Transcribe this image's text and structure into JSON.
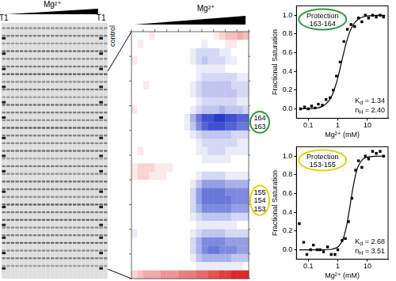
{
  "gel": {
    "title": "Mg²⁺",
    "lane_labels": [
      "T1",
      null,
      null,
      null,
      null,
      null,
      null,
      null,
      null,
      null,
      null,
      null,
      null,
      null,
      null,
      null,
      null,
      null,
      null,
      null,
      null,
      null,
      "T1",
      "control"
    ],
    "ladder_lanes": [
      0,
      22
    ],
    "band_positions": [
      0.02,
      0.05,
      0.08,
      0.11,
      0.14,
      0.17,
      0.2,
      0.23,
      0.26,
      0.29,
      0.32,
      0.35,
      0.38,
      0.41,
      0.44,
      0.47,
      0.5,
      0.53,
      0.56,
      0.59,
      0.62,
      0.65,
      0.68,
      0.71,
      0.74,
      0.77,
      0.8,
      0.83,
      0.86,
      0.89,
      0.92,
      0.95
    ],
    "band_intensities": [
      0.5,
      0.6,
      0.4,
      0.7,
      0.5,
      0.6,
      0.8,
      0.5,
      0.6,
      0.4,
      0.7,
      0.6,
      0.5,
      0.8,
      0.6,
      0.5,
      0.7,
      0.4,
      0.6,
      0.5,
      0.7,
      0.6,
      0.5,
      0.8,
      0.6,
      0.7,
      0.5,
      0.6,
      0.7,
      0.5,
      0.6,
      0.4
    ],
    "ladder_positions": [
      0.06,
      0.12,
      0.18,
      0.25,
      0.31,
      0.37,
      0.45,
      0.52,
      0.58,
      0.66,
      0.72,
      0.79,
      0.84,
      0.9,
      0.96
    ]
  },
  "chart_data": [
    {
      "type": "heatmap",
      "title": "Mg²⁺",
      "color_range": [
        -1,
        1
      ],
      "row_labels": [
        null,
        null,
        null,
        null,
        null,
        null,
        null,
        null,
        null,
        null,
        "164",
        "163",
        null,
        null,
        null,
        null,
        null,
        null,
        null,
        "155",
        "154",
        "153",
        null,
        null,
        null,
        null,
        null,
        null,
        null,
        null
      ],
      "highlights": [
        {
          "labels": [
            "164",
            "163"
          ],
          "color": "#2a9d3a"
        },
        {
          "labels": [
            "155",
            "154",
            "153"
          ],
          "color": "#e8d200"
        }
      ],
      "cells": [
        [
          0,
          0,
          0,
          0.1,
          0,
          0,
          0,
          0,
          0,
          0,
          0,
          0,
          0,
          0,
          0.1,
          0.2,
          0.3,
          0.3,
          0.4,
          0.3
        ],
        [
          0,
          0.1,
          0,
          0,
          0,
          0,
          0,
          0,
          0,
          0,
          0,
          0,
          -0.1,
          0,
          0,
          0,
          0.1,
          0.1,
          0,
          0
        ],
        [
          0,
          0,
          0,
          0,
          0,
          0,
          0,
          0,
          0,
          0,
          -0.1,
          -0.2,
          -0.2,
          -0.2,
          -0.2,
          -0.1,
          -0.1,
          0,
          0,
          0
        ],
        [
          0.1,
          0,
          0,
          0,
          0,
          0,
          0,
          0,
          0,
          0,
          -0.1,
          -0.2,
          -0.3,
          -0.2,
          -0.2,
          -0.2,
          -0.1,
          -0.1,
          0,
          0
        ],
        [
          0,
          0,
          0,
          0,
          0,
          0,
          0,
          0,
          0,
          0,
          0,
          -0.1,
          -0.1,
          -0.1,
          -0.1,
          -0.1,
          0,
          0,
          0,
          0
        ],
        [
          0,
          0,
          0,
          0,
          0,
          0,
          0,
          0,
          0,
          0,
          0,
          -0.1,
          -0.2,
          -0.2,
          -0.2,
          -0.2,
          -0.2,
          -0.2,
          -0.1,
          -0.1
        ],
        [
          0,
          0,
          0.1,
          0,
          0,
          0,
          0,
          0,
          0,
          0,
          -0.1,
          -0.2,
          -0.3,
          -0.3,
          -0.3,
          -0.3,
          -0.3,
          -0.2,
          -0.2,
          -0.2
        ],
        [
          0,
          0,
          0,
          0,
          0,
          0,
          0,
          0,
          0,
          0,
          -0.1,
          -0.2,
          -0.3,
          -0.3,
          -0.3,
          -0.3,
          -0.3,
          -0.3,
          -0.2,
          -0.2
        ],
        [
          0,
          0,
          0,
          0,
          0,
          0,
          0,
          0,
          0,
          0,
          0,
          -0.1,
          -0.2,
          -0.2,
          -0.2,
          -0.2,
          -0.2,
          -0.2,
          -0.1,
          -0.1
        ],
        [
          0.1,
          0,
          0,
          0,
          0,
          0,
          0,
          0,
          0,
          0,
          -0.1,
          -0.2,
          -0.3,
          -0.3,
          -0.3,
          -0.4,
          -0.3,
          -0.3,
          -0.3,
          -0.2
        ],
        [
          0,
          0,
          0,
          0,
          0,
          0,
          0,
          0,
          0,
          -0.1,
          -0.4,
          -0.7,
          -0.9,
          -0.9,
          -1,
          -1,
          -0.9,
          -0.9,
          -0.8,
          -0.8
        ],
        [
          0,
          0,
          0,
          0,
          0,
          0,
          0,
          0,
          0,
          -0.1,
          -0.3,
          -0.6,
          -0.8,
          -0.9,
          -0.9,
          -0.9,
          -0.8,
          -0.8,
          -0.7,
          -0.7
        ],
        [
          0,
          0,
          0,
          0,
          0,
          0,
          0,
          0,
          0,
          0,
          -0.1,
          -0.2,
          -0.3,
          -0.3,
          -0.3,
          -0.3,
          -0.3,
          -0.2,
          -0.2,
          -0.2
        ],
        [
          0,
          0,
          0,
          0,
          0,
          0,
          0,
          0,
          0,
          0,
          0,
          -0.1,
          -0.2,
          -0.2,
          -0.2,
          -0.2,
          -0.2,
          -0.2,
          -0.1,
          -0.1
        ],
        [
          0,
          0.1,
          0,
          0,
          0,
          0,
          0,
          0,
          0,
          0,
          0,
          -0.1,
          -0.1,
          -0.2,
          -0.2,
          -0.2,
          -0.1,
          -0.1,
          -0.1,
          -0.1
        ],
        [
          0,
          0,
          0,
          0,
          0,
          0,
          0,
          0,
          0,
          0,
          0,
          0,
          -0.1,
          -0.1,
          -0.1,
          -0.1,
          -0.1,
          0,
          0,
          0
        ],
        [
          0.1,
          0.2,
          0.2,
          0.2,
          0.1,
          0.1,
          0.1,
          0,
          0,
          0,
          0,
          0,
          0,
          0,
          0,
          0,
          0,
          0,
          0,
          0
        ],
        [
          0.1,
          0.2,
          0.2,
          0.1,
          0.1,
          0.1,
          0,
          0,
          0,
          0,
          0,
          -0.1,
          -0.2,
          -0.2,
          -0.2,
          -0.2,
          -0.1,
          -0.1,
          -0.1,
          -0.1
        ],
        [
          0,
          0,
          0,
          0,
          0,
          0,
          0,
          0,
          0,
          0,
          -0.1,
          -0.3,
          -0.5,
          -0.5,
          -0.5,
          -0.5,
          -0.4,
          -0.4,
          -0.4,
          -0.4
        ],
        [
          0,
          0,
          0,
          0,
          0,
          0,
          0,
          0,
          0,
          0,
          -0.2,
          -0.5,
          -0.7,
          -0.7,
          -0.7,
          -0.7,
          -0.6,
          -0.6,
          -0.6,
          -0.6
        ],
        [
          0,
          0,
          0,
          0,
          0,
          0,
          0,
          0,
          0,
          0,
          -0.2,
          -0.5,
          -0.7,
          -0.7,
          -0.7,
          -0.7,
          -0.7,
          -0.6,
          -0.6,
          -0.6
        ],
        [
          0,
          0,
          0,
          0,
          0,
          0,
          0,
          0,
          0,
          0,
          -0.2,
          -0.4,
          -0.6,
          -0.6,
          -0.6,
          -0.6,
          -0.6,
          -0.5,
          -0.5,
          -0.5
        ],
        [
          0,
          0,
          0,
          0,
          0,
          0,
          0,
          0,
          0,
          0,
          -0.1,
          -0.2,
          -0.3,
          -0.3,
          -0.3,
          -0.3,
          -0.3,
          -0.2,
          -0.2,
          -0.2
        ],
        [
          0,
          0,
          0,
          0,
          0,
          0,
          0,
          0,
          0,
          0,
          0,
          -0.1,
          -0.1,
          -0.1,
          -0.1,
          -0.1,
          -0.1,
          -0.1,
          0,
          0
        ],
        [
          -0.1,
          0,
          0,
          0,
          0,
          0,
          0,
          0,
          0,
          0,
          -0.1,
          -0.2,
          -0.3,
          -0.3,
          -0.3,
          -0.3,
          -0.2,
          -0.2,
          -0.2,
          -0.2
        ],
        [
          0,
          0,
          0,
          0,
          0,
          0,
          0,
          0,
          0,
          0,
          -0.2,
          -0.4,
          -0.6,
          -0.6,
          -0.6,
          -0.6,
          -0.5,
          -0.5,
          -0.5,
          -0.5
        ],
        [
          0,
          0,
          0,
          0,
          0,
          0,
          0,
          0,
          0,
          0,
          -0.2,
          -0.4,
          -0.6,
          -0.7,
          -0.7,
          -0.6,
          -0.6,
          -0.6,
          -0.5,
          -0.5
        ],
        [
          0,
          0,
          0,
          0,
          0,
          0,
          0,
          0,
          0,
          0,
          -0.1,
          -0.3,
          -0.4,
          -0.4,
          -0.4,
          -0.4,
          -0.4,
          -0.3,
          -0.3,
          -0.3
        ],
        [
          0,
          0,
          0,
          0,
          0,
          0,
          0,
          0,
          0,
          0,
          0,
          -0.1,
          -0.1,
          -0.1,
          -0.1,
          -0.1,
          -0.1,
          -0.1,
          -0.1,
          0
        ],
        [
          0.2,
          0.3,
          0.4,
          0.4,
          0.4,
          0.5,
          0.5,
          0.5,
          0.6,
          0.6,
          0.6,
          0.7,
          0.7,
          0.8,
          0.8,
          0.9,
          0.9,
          1,
          1,
          1
        ]
      ]
    },
    {
      "type": "scatter",
      "x_label": "Mg²⁺ (mM)",
      "y_label": "Fractional Saturation",
      "log": "x",
      "grid": false,
      "xlim": [
        0.04,
        50
      ],
      "xticks": [
        0.1,
        1,
        10
      ],
      "ylim": [
        -0.1,
        1.1
      ],
      "yticks": [
        {
          "value": 0,
          "label": "0.0"
        },
        {
          "value": 0.2,
          "label": "0.2"
        },
        {
          "value": 0.4,
          "label": "0.4"
        },
        {
          "value": 0.6,
          "label": "0.6"
        },
        {
          "value": 0.8,
          "label": "0.8"
        },
        {
          "value": 1,
          "label": "1.0"
        }
      ],
      "highlight": {
        "text": "Protection 163-164",
        "color": "#2a9d3a"
      },
      "annotations": [
        "Kd = 1.34",
        "nH = 2.40"
      ],
      "series": [
        {
          "color": "#000000",
          "marker": "square",
          "x": [
            0.055,
            0.075,
            0.1,
            0.13,
            0.17,
            0.22,
            0.3,
            0.4,
            0.55,
            0.7,
            0.9,
            1.2,
            1.6,
            2.1,
            2.8,
            3.7,
            5,
            6.5,
            8.5,
            11,
            15,
            20,
            27,
            35
          ],
          "values": [
            0.0,
            0.02,
            0.0,
            0.03,
            0.01,
            0.05,
            0.04,
            0.1,
            0.12,
            0.2,
            0.35,
            0.5,
            0.72,
            0.85,
            0.9,
            0.88,
            0.97,
            0.93,
            1.0,
            0.97,
            1.0,
            0.98,
            1.0,
            0.98
          ]
        },
        {
          "color": "#000000",
          "line_style": "solid",
          "x": [
            0.05,
            0.1,
            0.2,
            0.3,
            0.5,
            0.7,
            1,
            1.34,
            1.8,
            2.5,
            3.5,
            5,
            7,
            10,
            20,
            40
          ],
          "values": [
            0,
            0.002,
            0.01,
            0.027,
            0.086,
            0.174,
            0.331,
            0.5,
            0.67,
            0.817,
            0.909,
            0.959,
            0.981,
            0.992,
            0.998,
            0.999
          ]
        }
      ]
    },
    {
      "type": "scatter",
      "x_label": "Mg²⁺ (mM)",
      "y_label": "Fractional Saturation",
      "log": "x",
      "grid": false,
      "xlim": [
        0.04,
        50
      ],
      "xticks": [
        0.1,
        1,
        10
      ],
      "ylim": [
        -0.1,
        1.1
      ],
      "yticks": [
        {
          "value": 0,
          "label": "0.0"
        },
        {
          "value": 0.2,
          "label": "0.2"
        },
        {
          "value": 0.4,
          "label": "0.4"
        },
        {
          "value": 0.6,
          "label": "0.6"
        },
        {
          "value": 0.8,
          "label": "0.8"
        },
        {
          "value": 1,
          "label": "1.0"
        }
      ],
      "highlight": {
        "text": "Protection 153-155",
        "color": "#e8d200"
      },
      "annotations": [
        "Kd = 2.68",
        "nH = 3.51"
      ],
      "series": [
        {
          "color": "#000000",
          "marker": "square",
          "x": [
            0.05,
            0.07,
            0.09,
            0.12,
            0.15,
            0.2,
            0.25,
            0.33,
            0.45,
            0.6,
            0.8,
            1,
            1.4,
            1.8,
            2.3,
            3,
            4,
            5,
            6.5,
            8.5,
            11,
            15,
            20,
            27,
            35
          ],
          "values": [
            0.28,
            0.08,
            -0.05,
            0.0,
            0.05,
            0.0,
            0.0,
            -0.02,
            0.03,
            -0.05,
            -0.05,
            0.0,
            0.1,
            0.12,
            0.3,
            0.55,
            0.85,
            0.95,
            0.88,
            1.0,
            0.97,
            1.05,
            1.03,
            1.05,
            1.0
          ]
        },
        {
          "color": "#000000",
          "line_style": "solid",
          "x": [
            0.05,
            0.1,
            0.2,
            0.3,
            0.6,
            1,
            1.5,
            2,
            2.68,
            3.2,
            4,
            5,
            7,
            10,
            20,
            40
          ],
          "values": [
            0,
            0,
            0,
            0,
            0.005,
            0.03,
            0.115,
            0.263,
            0.5,
            0.65,
            0.803,
            0.899,
            0.967,
            0.99,
            0.999,
            1
          ]
        }
      ]
    }
  ]
}
